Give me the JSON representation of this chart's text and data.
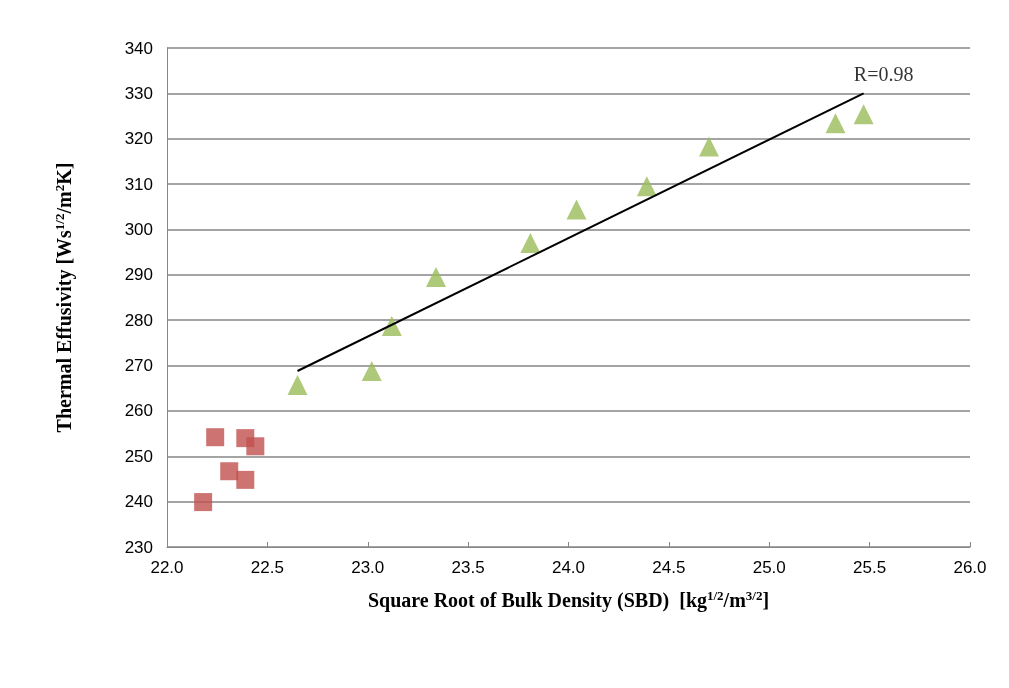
{
  "chart_data": {
    "type": "scatter",
    "xlabel": "Square Root of Bulk Density (SBD)  [kg$^{1/2}$/m$^{3/2}$]",
    "ylabel": "Thermal Effusivity [Ws$^{1/2}$/m$^{2}$K]",
    "xlim": [
      22.0,
      26.0
    ],
    "xticks": [
      {
        "value": 22,
        "label": "22.0"
      },
      {
        "value": 22.5,
        "label": "22.5"
      },
      {
        "value": 23,
        "label": "23.0"
      },
      {
        "value": 23.5,
        "label": "23.5"
      },
      {
        "value": 24,
        "label": "24.0"
      },
      {
        "value": 24.5,
        "label": "24.5"
      },
      {
        "value": 25,
        "label": "25.0"
      },
      {
        "value": 25.5,
        "label": "25.5"
      },
      {
        "value": 26,
        "label": "26.0"
      }
    ],
    "ylim": [
      230,
      340
    ],
    "yticks": [
      230,
      240,
      250,
      260,
      270,
      280,
      290,
      300,
      310,
      320,
      330,
      340
    ],
    "grid": "y",
    "series": [
      {
        "marker": "square",
        "color": "#c0504d",
        "x": [
          22.24,
          22.39,
          22.44,
          22.31,
          22.39,
          22.18
        ],
        "values": [
          254.2,
          254,
          252.2,
          246.7,
          244.8,
          239.9
        ]
      },
      {
        "marker": "triangle",
        "color": "#9bbb59",
        "x": [
          22.65,
          23.02,
          23.12,
          23.34,
          23.81,
          24.04,
          24.39,
          24.7,
          25.33,
          25.47
        ],
        "values": [
          265.7,
          268.8,
          278.7,
          289.5,
          297,
          304.4,
          309.5,
          318.3,
          323.4,
          325.4
        ]
      },
      {
        "type": "line",
        "marker": "none",
        "color": "#000000",
        "x": [
          22.65,
          25.47
        ],
        "values": [
          268.8,
          330
        ]
      }
    ],
    "annotations": [
      {
        "text": "R=0.98",
        "x": 25.47,
        "y": 330
      }
    ]
  }
}
